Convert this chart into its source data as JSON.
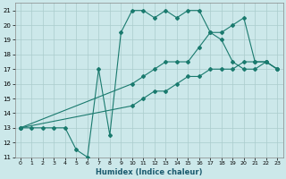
{
  "xlabel": "Humidex (Indice chaleur)",
  "bg_color": "#cce8ea",
  "grid_color": "#aacccc",
  "line_color": "#1a7a6e",
  "xlim": [
    -0.5,
    23.5
  ],
  "ylim": [
    11,
    21.5
  ],
  "yticks": [
    11,
    12,
    13,
    14,
    15,
    16,
    17,
    18,
    19,
    20,
    21
  ],
  "xticks": [
    0,
    1,
    2,
    3,
    4,
    5,
    6,
    7,
    8,
    9,
    10,
    11,
    12,
    13,
    14,
    15,
    16,
    17,
    18,
    19,
    20,
    21,
    22,
    23
  ],
  "line1_x": [
    0,
    1,
    2,
    3,
    4,
    5,
    6,
    7,
    8,
    9,
    10,
    11,
    12,
    13,
    14,
    15,
    16,
    17,
    18,
    19,
    20,
    21,
    22,
    23
  ],
  "line1_y": [
    13.0,
    13.0,
    13.0,
    13.0,
    13.0,
    11.5,
    11.0,
    17.0,
    12.5,
    19.5,
    21.0,
    21.0,
    20.5,
    21.0,
    20.5,
    21.0,
    21.0,
    19.5,
    19.0,
    17.5,
    17.0,
    17.0,
    17.5,
    17.0
  ],
  "line2_x": [
    0,
    10,
    11,
    12,
    13,
    14,
    15,
    16,
    17,
    18,
    19,
    20,
    21,
    22,
    23
  ],
  "line2_y": [
    13.0,
    16.0,
    16.5,
    17.0,
    17.5,
    17.5,
    17.5,
    18.5,
    19.5,
    19.5,
    20.0,
    20.5,
    17.5,
    17.5,
    17.0
  ],
  "line3_x": [
    0,
    10,
    11,
    12,
    13,
    14,
    15,
    16,
    17,
    18,
    19,
    20,
    21,
    22,
    23
  ],
  "line3_y": [
    13.0,
    14.5,
    15.0,
    15.5,
    15.5,
    16.0,
    16.5,
    16.5,
    17.0,
    17.0,
    17.0,
    17.5,
    17.5,
    17.5,
    17.0
  ]
}
